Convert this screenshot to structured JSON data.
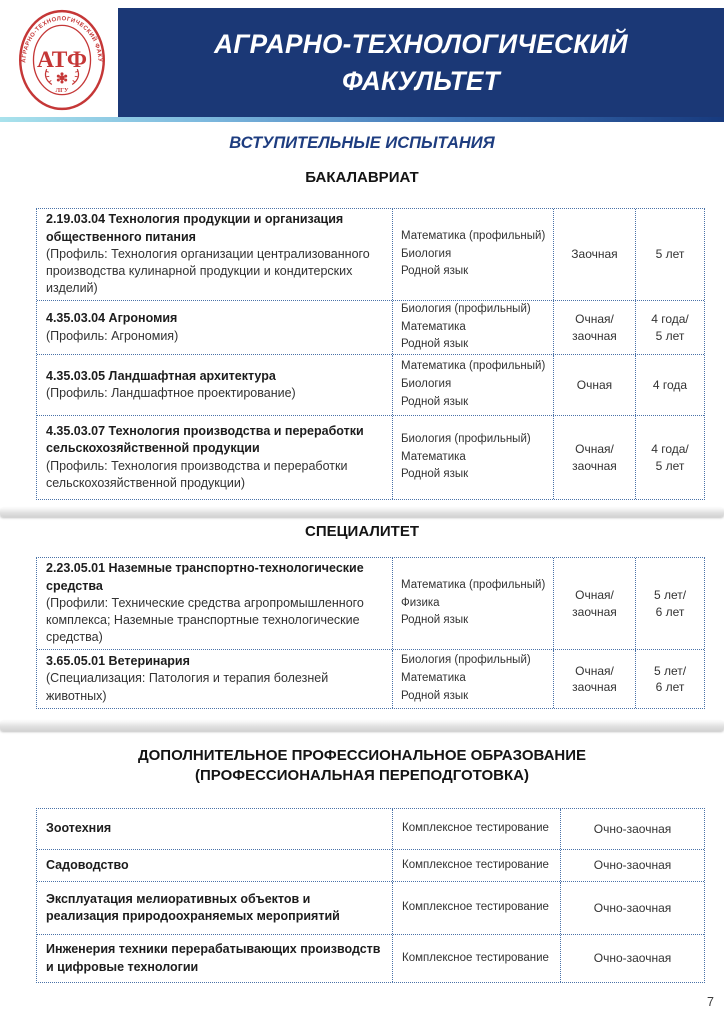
{
  "colors": {
    "navy": "#1b3876",
    "navy-text": "#1e3d80",
    "red": "#c53737",
    "bdr": "#4a72a8"
  },
  "header": {
    "title_line1": "АГРАРНО-ТЕХНОЛОГИЧЕСКИЙ",
    "title_line2": "ФАКУЛЬТЕТ",
    "logo": {
      "center": "АТФ",
      "ring_text": "АГРАРНО-ТЕХНОЛОГИЧЕСКИЙ ФАКУЛЬТЕТ",
      "bottom": "ЛГУ"
    }
  },
  "subtitle": "ВСТУПИТЕЛЬНЫЕ ИСПЫТАНИЯ",
  "sections": {
    "bachelor_heading": "БАКАЛАВРИАТ",
    "specialist_heading": "СПЕЦИАЛИТЕТ",
    "dpo_heading_line1": "ДОПОЛНИТЕЛЬНОЕ ПРОФЕССИОНАЛЬНОЕ ОБРАЗОВАНИЕ",
    "dpo_heading_line2": "(ПРОФЕССИОНАЛЬНАЯ ПЕРЕПОДГОТОВКА)"
  },
  "tables": [
    {
      "id": "bachelor",
      "kind": "four",
      "rows": [
        {
          "name": "2.19.03.04 Технология продукции и организация общественного питания",
          "detail": "(Профиль: Технология организации централизованного производства кулинарной продукции и кондитерских изделий)",
          "exams": "Математика (профильный)\nБиология\nРодной язык",
          "form": "Заочная",
          "duration": "5 лет"
        },
        {
          "name": "4.35.03.04 Агрономия",
          "detail": "(Профиль: Агрономия)",
          "exams": "Биология (профильный)\nМатематика\nРодной язык",
          "form": "Очная/\nзаочная",
          "duration": "4 года/\n5 лет"
        },
        {
          "name": "4.35.03.05 Ландшафтная архитектура",
          "detail": "(Профиль: Ландшафтное проектирование)",
          "exams": "Математика (профильный)\nБиология\nРодной язык",
          "form": "Очная",
          "duration": "4 года"
        },
        {
          "name": "4.35.03.07 Технология производства и переработки сельскохозяйственной продукции",
          "detail": "(Профиль: Технология производства и переработки сельскохозяйственной продукции)",
          "exams": "Биология (профильный)\nМатематика\nРодной язык",
          "form": "Очная/\nзаочная",
          "duration": "4 года/\n5 лет"
        }
      ]
    },
    {
      "id": "specialist",
      "kind": "four",
      "rows": [
        {
          "name": "2.23.05.01 Наземные транспортно-технологические средства",
          "detail": "(Профили: Технические средства агропромышленного комплекса; Наземные транспортные технологические средства)",
          "exams": "Математика (профильный)\nФизика\nРодной язык",
          "form": "Очная/\nзаочная",
          "duration": "5 лет/\n6 лет"
        },
        {
          "name": "3.65.05.01 Ветеринария",
          "detail": "(Специализация: Патология и терапия болезней животных)",
          "exams": "Биология (профильный)\nМатематика\nРодной язык",
          "form": "Очная/\nзаочная",
          "duration": "5 лет/\n6 лет"
        }
      ]
    },
    {
      "id": "dpo",
      "kind": "three",
      "rows": [
        {
          "name": "Зоотехния",
          "exam": "Комплексное тестирование",
          "form": "Очно-заочная"
        },
        {
          "name": "Садоводство",
          "exam": "Комплексное тестирование",
          "form": "Очно-заочная"
        },
        {
          "name": "Эксплуатация мелиоративных объектов и реализация природоохраняемых мероприятий",
          "exam": "Комплексное тестирование",
          "form": "Очно-заочная"
        },
        {
          "name": "Инженерия техники перерабатывающих производств и цифровые технологии",
          "exam": "Комплексное тестирование",
          "form": "Очно-заочная"
        }
      ]
    }
  ],
  "page_number": "7"
}
